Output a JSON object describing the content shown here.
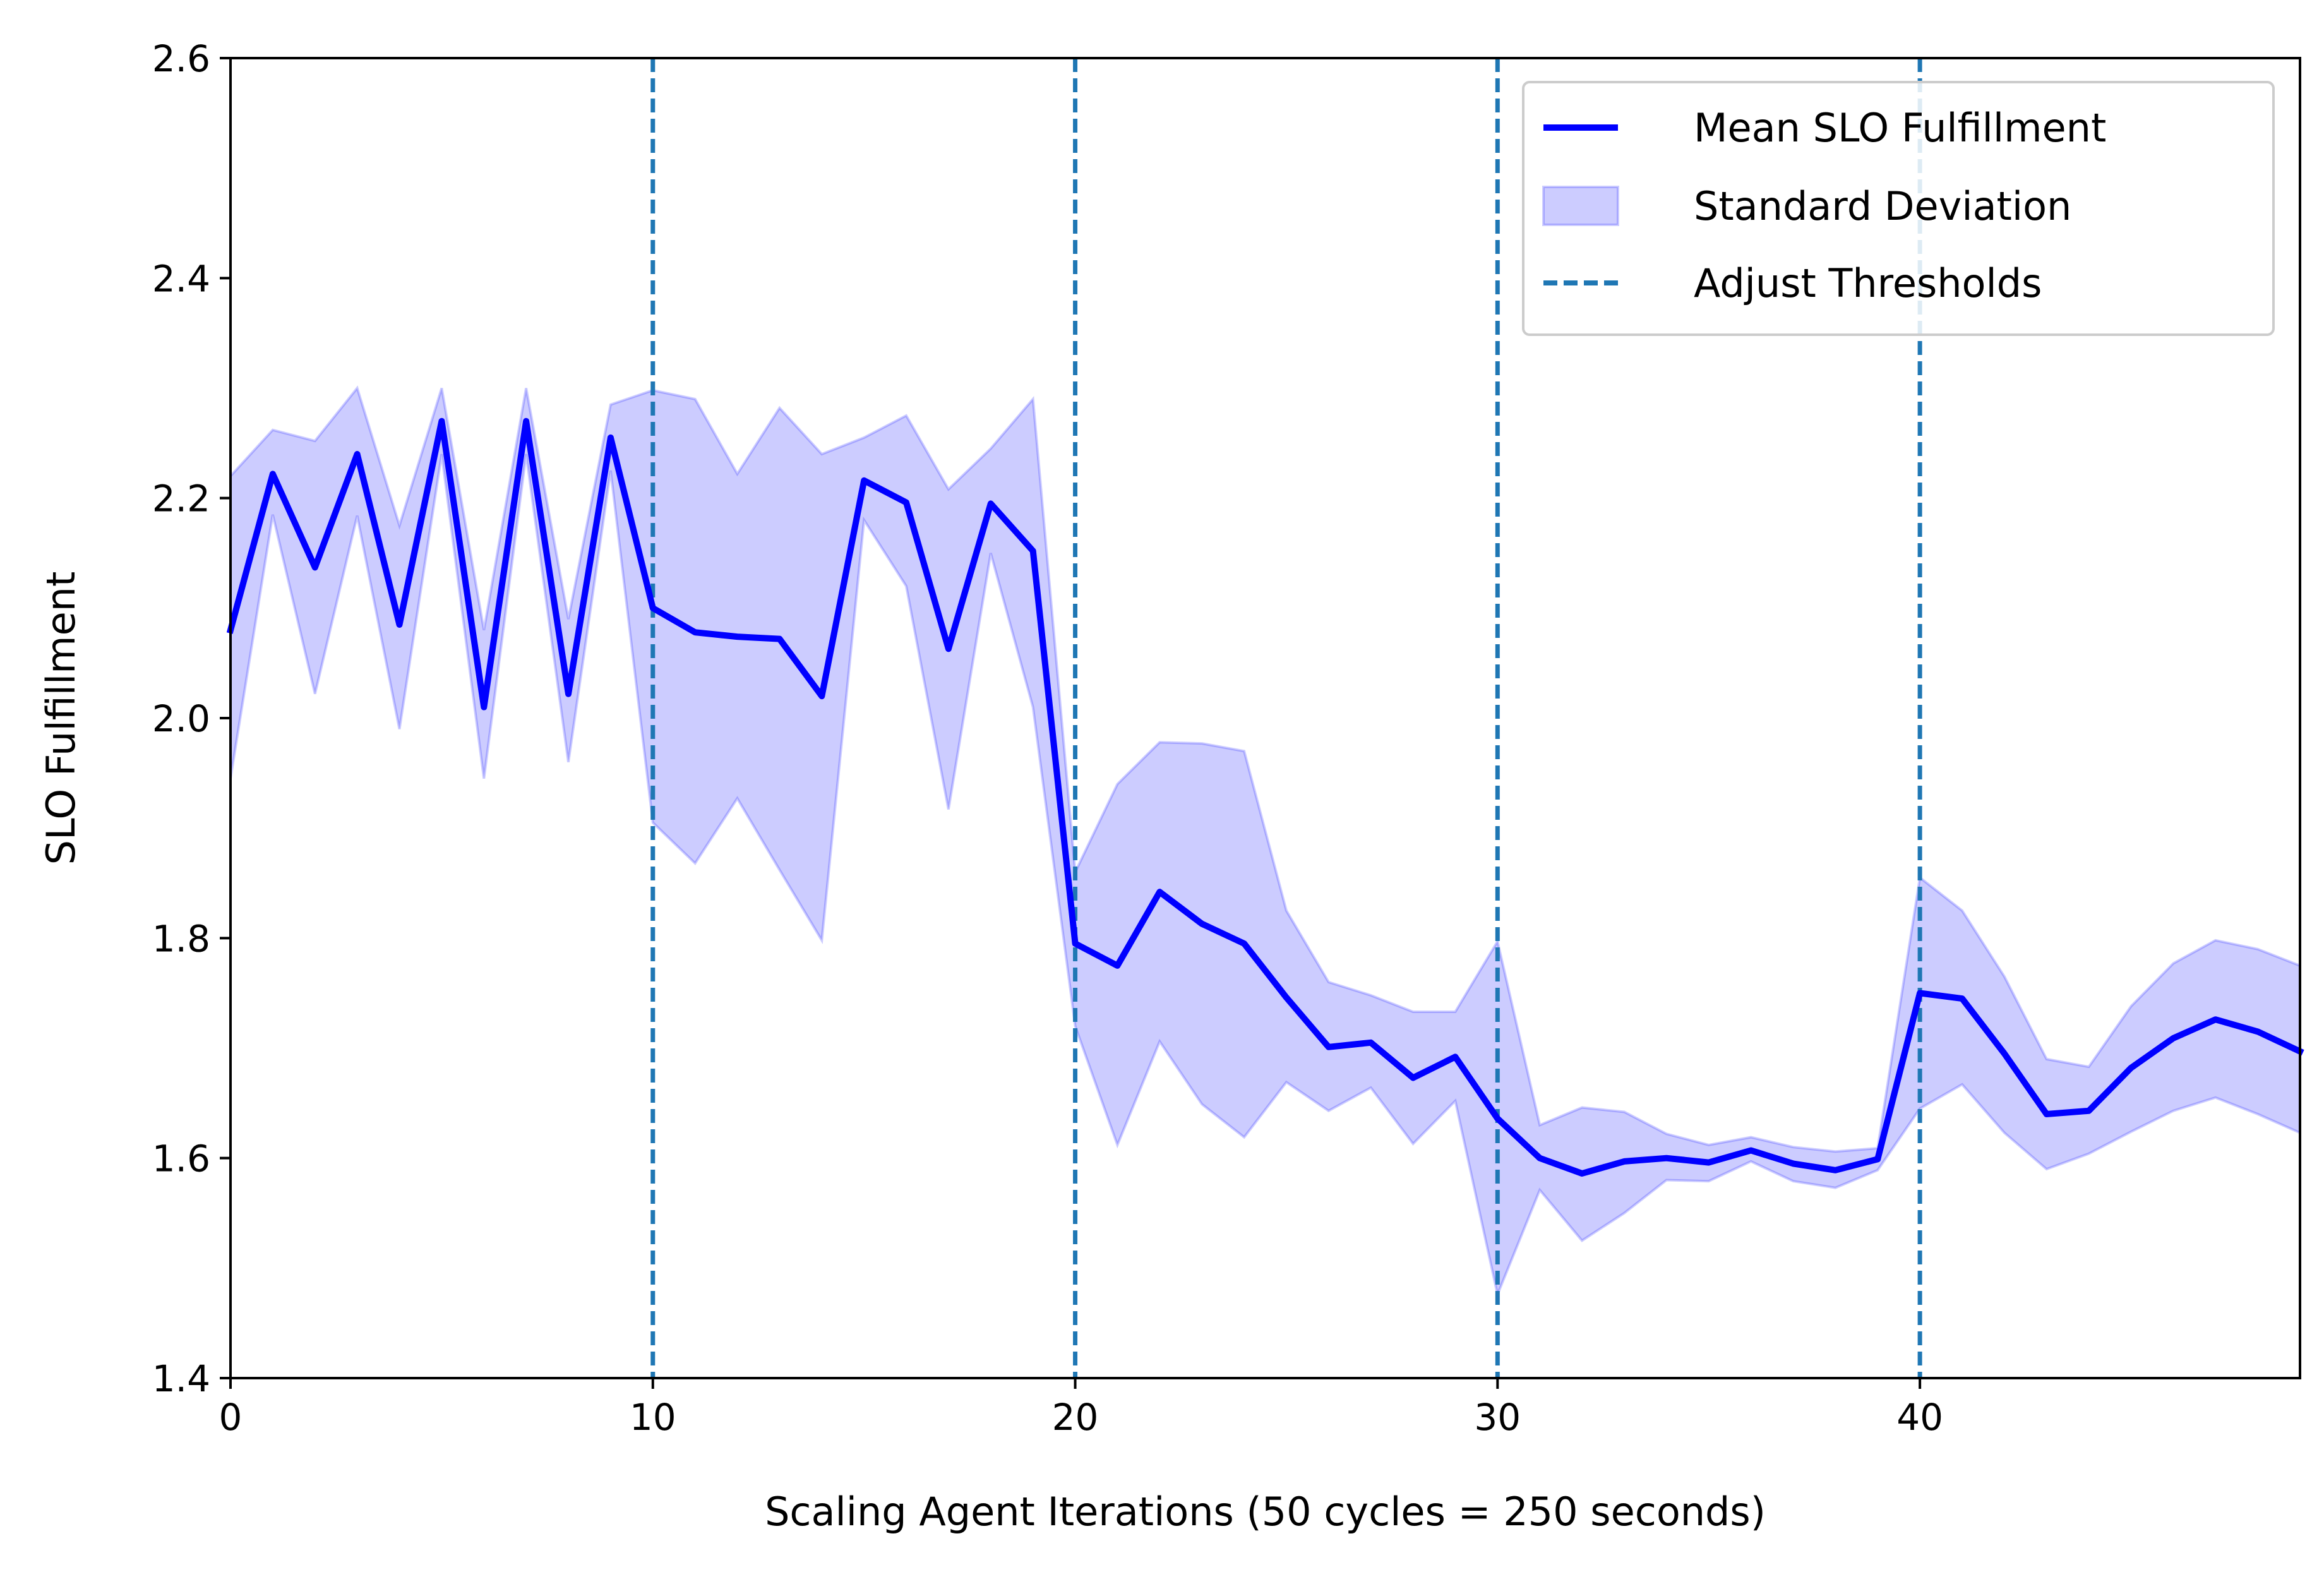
{
  "chart_data": {
    "type": "line",
    "title": "",
    "xlabel": "Scaling Agent Iterations (50 cycles = 250 seconds)",
    "ylabel": "SLO Fulfillment",
    "xlim": [
      0,
      49
    ],
    "ylim": [
      1.4,
      2.6
    ],
    "xticks": [
      0,
      10,
      20,
      30,
      40
    ],
    "xtick_labels": [
      "0",
      "10",
      "20",
      "30",
      "40"
    ],
    "yticks": [
      1.4,
      1.6,
      1.8,
      2.0,
      2.2,
      2.4,
      2.6
    ],
    "ytick_labels": [
      "1.4",
      "1.6",
      "1.8",
      "2.0",
      "2.2",
      "2.4",
      "2.6"
    ],
    "grid": false,
    "legend_position": "top-right",
    "x": [
      0,
      1,
      2,
      3,
      4,
      5,
      6,
      7,
      8,
      9,
      10,
      11,
      12,
      13,
      14,
      15,
      16,
      17,
      18,
      19,
      20,
      21,
      22,
      23,
      24,
      25,
      26,
      27,
      28,
      29,
      30,
      31,
      32,
      33,
      34,
      35,
      36,
      37,
      38,
      39,
      40,
      41,
      42,
      43,
      44,
      45,
      46,
      47,
      48,
      49
    ],
    "series": [
      {
        "name": "Mean SLO Fulfillment",
        "kind": "line",
        "color": "#0000ff",
        "values": [
          2.08,
          2.222,
          2.137,
          2.24,
          2.085,
          2.27,
          2.01,
          2.27,
          2.022,
          2.255,
          2.1,
          2.078,
          2.074,
          2.072,
          2.02,
          2.216,
          2.196,
          2.063,
          2.195,
          2.152,
          1.795,
          1.775,
          1.842,
          1.813,
          1.795,
          1.746,
          1.701,
          1.705,
          1.673,
          1.692,
          1.636,
          1.6,
          1.586,
          1.597,
          1.6,
          1.596,
          1.607,
          1.595,
          1.589,
          1.599,
          1.75,
          1.745,
          1.695,
          1.64,
          1.643,
          1.682,
          1.709,
          1.726,
          1.715,
          1.697
        ]
      },
      {
        "name": "Standard Deviation",
        "kind": "band",
        "color": "#0000ff",
        "upper": [
          2.22,
          2.262,
          2.252,
          2.3,
          2.175,
          2.3,
          2.08,
          2.3,
          2.09,
          2.285,
          2.298,
          2.29,
          2.222,
          2.282,
          2.24,
          2.255,
          2.275,
          2.208,
          2.245,
          2.29,
          1.86,
          1.94,
          1.978,
          1.977,
          1.97,
          1.825,
          1.76,
          1.748,
          1.733,
          1.733,
          1.797,
          1.63,
          1.646,
          1.642,
          1.622,
          1.612,
          1.619,
          1.61,
          1.606,
          1.609,
          1.855,
          1.825,
          1.765,
          1.69,
          1.683,
          1.738,
          1.777,
          1.798,
          1.79,
          1.775
        ],
        "lower": [
          1.945,
          2.185,
          2.022,
          2.184,
          1.99,
          2.24,
          1.945,
          2.24,
          1.96,
          2.225,
          1.905,
          1.868,
          1.927,
          1.862,
          1.798,
          2.18,
          2.12,
          1.917,
          2.15,
          2.01,
          1.72,
          1.612,
          1.706,
          1.649,
          1.619,
          1.669,
          1.643,
          1.664,
          1.613,
          1.652,
          1.476,
          1.571,
          1.525,
          1.55,
          1.58,
          1.579,
          1.597,
          1.579,
          1.573,
          1.589,
          1.645,
          1.667,
          1.623,
          1.59,
          1.604,
          1.624,
          1.643,
          1.655,
          1.64,
          1.623
        ]
      },
      {
        "name": "Adjust Thresholds",
        "kind": "vlines",
        "color": "#1f77b4",
        "positions": [
          10,
          20,
          30,
          40
        ]
      }
    ]
  }
}
